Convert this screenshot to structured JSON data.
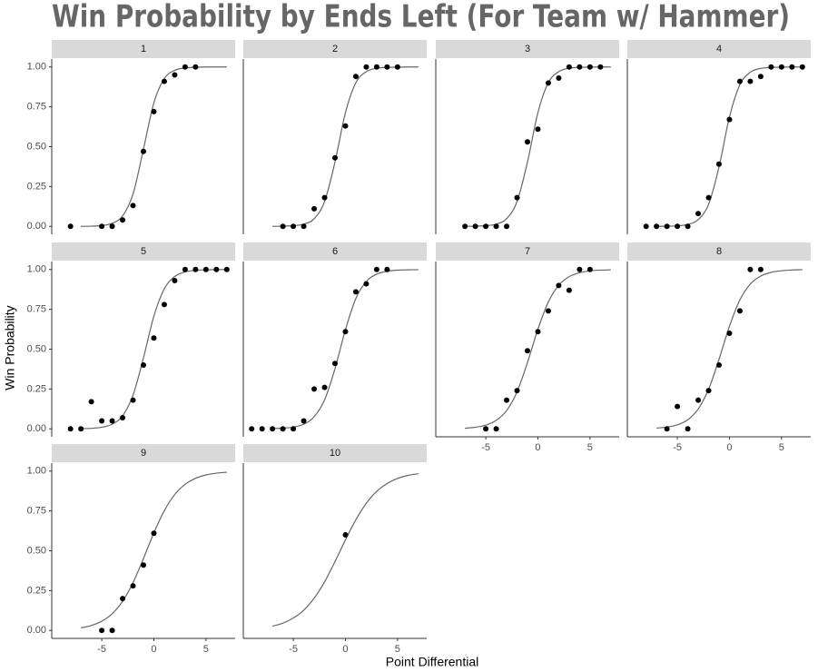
{
  "chart_data": {
    "type": "scatter",
    "title": "Win Probability by Ends Left (For Team w/ Hammer)",
    "x_label": "Point Differential",
    "y_label": "Win Probability",
    "point_color": "#000000",
    "curve_color": "#666666",
    "strip_color": "#d9d9d9",
    "xlim": [
      -9.8,
      7.8
    ],
    "ylim": [
      -0.05,
      1.05
    ],
    "xticks": [
      -5,
      0,
      5
    ],
    "yticks": [
      {
        "value": 0,
        "label": "0.00"
      },
      {
        "value": 0.25,
        "label": "0.25"
      },
      {
        "value": 0.5,
        "label": "0.50"
      },
      {
        "value": 0.75,
        "label": "0.75"
      },
      {
        "value": 1,
        "label": "1.00"
      }
    ],
    "panels": [
      {
        "title": "1",
        "points": {
          "x": [
            -8,
            -5,
            -4,
            -3,
            -2,
            -1,
            0,
            1,
            2,
            3,
            4
          ],
          "y": [
            0,
            0,
            0,
            0.04,
            0.13,
            0.47,
            0.72,
            0.91,
            0.95,
            1,
            1
          ]
        },
        "curve": {
          "x": [
            -7,
            -6,
            -5,
            -4,
            -3,
            -2,
            -1,
            0,
            1,
            2,
            3,
            4,
            5,
            6,
            7
          ],
          "y": [
            0,
            0.001,
            0.005,
            0.019,
            0.065,
            0.203,
            0.484,
            0.775,
            0.927,
            0.979,
            0.994,
            0.998,
            1,
            1,
            1
          ]
        }
      },
      {
        "title": "2",
        "points": {
          "x": [
            -6,
            -5,
            -4,
            -3,
            -2,
            -1,
            0,
            1,
            2,
            3,
            4,
            5
          ],
          "y": [
            0,
            0,
            0,
            0.11,
            0.18,
            0.43,
            0.63,
            0.94,
            1,
            1,
            1,
            1
          ]
        },
        "curve": {
          "x": [
            -7,
            -6,
            -5,
            -4,
            -3,
            -2,
            -1,
            0,
            1,
            2,
            3,
            4,
            5,
            6,
            7
          ],
          "y": [
            0,
            0.001,
            0.004,
            0.014,
            0.048,
            0.156,
            0.404,
            0.713,
            0.901,
            0.971,
            0.992,
            0.998,
            0.999,
            1,
            1
          ]
        }
      },
      {
        "title": "3",
        "points": {
          "x": [
            -7,
            -6,
            -5,
            -4,
            -3,
            -2,
            -1,
            0,
            1,
            2,
            3,
            4,
            5,
            6
          ],
          "y": [
            0,
            0,
            0,
            0,
            0,
            0.18,
            0.53,
            0.61,
            0.9,
            0.93,
            1,
            1,
            1,
            1
          ]
        },
        "curve": {
          "x": [
            -7,
            -6,
            -5,
            -4,
            -3,
            -2,
            -1,
            0,
            1,
            2,
            3,
            4,
            5,
            6,
            7
          ],
          "y": [
            0,
            0.001,
            0.004,
            0.014,
            0.048,
            0.156,
            0.404,
            0.713,
            0.901,
            0.971,
            0.992,
            0.998,
            0.999,
            1,
            1
          ]
        }
      },
      {
        "title": "4",
        "points": {
          "x": [
            -8,
            -7,
            -6,
            -5,
            -4,
            -3,
            -2,
            -1,
            0,
            1,
            2,
            3,
            4,
            5,
            6,
            7
          ],
          "y": [
            0,
            0,
            0,
            0,
            0,
            0.08,
            0.18,
            0.39,
            0.67,
            0.91,
            0.91,
            0.94,
            1,
            1,
            1,
            1
          ]
        },
        "curve": {
          "x": [
            -7,
            -6,
            -5,
            -4,
            -3,
            -2,
            -1,
            0,
            1,
            2,
            3,
            4,
            5,
            6,
            7
          ],
          "y": [
            0,
            0.001,
            0.003,
            0.012,
            0.042,
            0.139,
            0.373,
            0.686,
            0.889,
            0.967,
            0.991,
            0.997,
            0.999,
            1,
            1
          ]
        }
      },
      {
        "title": "5",
        "points": {
          "x": [
            -8,
            -7,
            -6,
            -5,
            -4,
            -3,
            -2,
            -1,
            0,
            1,
            2,
            3,
            4,
            5,
            6,
            7
          ],
          "y": [
            0,
            0,
            0.17,
            0.05,
            0.05,
            0.07,
            0.18,
            0.4,
            0.57,
            0.78,
            0.93,
            1,
            1,
            1,
            1,
            1
          ]
        },
        "curve": {
          "x": [
            -7,
            -6,
            -5,
            -4,
            -3,
            -2,
            -1,
            0,
            1,
            2,
            3,
            4,
            5,
            6,
            7
          ],
          "y": [
            0.001,
            0.003,
            0.01,
            0.029,
            0.082,
            0.211,
            0.445,
            0.707,
            0.879,
            0.956,
            0.985,
            0.995,
            0.998,
            0.999,
            1
          ]
        }
      },
      {
        "title": "6",
        "points": {
          "x": [
            -9,
            -8,
            -7,
            -6,
            -5,
            -4,
            -3,
            -2,
            -1,
            0,
            1,
            2,
            3,
            4
          ],
          "y": [
            0,
            0,
            0,
            0,
            0,
            0.05,
            0.25,
            0.26,
            0.41,
            0.61,
            0.86,
            0.91,
            1,
            1
          ]
        },
        "curve": {
          "x": [
            -7,
            -6,
            -5,
            -4,
            -3,
            -2,
            -1,
            0,
            1,
            2,
            3,
            4,
            5,
            6,
            7
          ],
          "y": [
            0.002,
            0.004,
            0.011,
            0.029,
            0.076,
            0.182,
            0.378,
            0.622,
            0.818,
            0.924,
            0.971,
            0.989,
            0.996,
            0.998,
            0.999
          ]
        }
      },
      {
        "title": "7",
        "points": {
          "x": [
            -5,
            -4,
            -3,
            -2,
            -1,
            0,
            1,
            2,
            3,
            4,
            5
          ],
          "y": [
            0,
            0,
            0.18,
            0.24,
            0.49,
            0.61,
            0.74,
            0.9,
            0.87,
            1,
            1
          ]
        },
        "curve": {
          "x": [
            -7,
            -6,
            -5,
            -4,
            -3,
            -2,
            -1,
            0,
            1,
            2,
            3,
            4,
            5,
            6,
            7
          ],
          "y": [
            0.004,
            0.01,
            0.023,
            0.053,
            0.115,
            0.233,
            0.416,
            0.625,
            0.796,
            0.901,
            0.955,
            0.98,
            0.992,
            0.996,
            0.998
          ]
        }
      },
      {
        "title": "8",
        "points": {
          "x": [
            -6,
            -5,
            -4,
            -3,
            -2,
            -1,
            0,
            1,
            2,
            3
          ],
          "y": [
            0,
            0.14,
            0,
            0.18,
            0.24,
            0.4,
            0.6,
            0.74,
            1,
            1
          ]
        },
        "curve": {
          "x": [
            -7,
            -6,
            -5,
            -4,
            -3,
            -2,
            -1,
            0,
            1,
            2,
            3,
            4,
            5,
            6,
            7
          ],
          "y": [
            0.005,
            0.011,
            0.025,
            0.057,
            0.124,
            0.249,
            0.437,
            0.644,
            0.809,
            0.909,
            0.959,
            0.982,
            0.992,
            0.997,
            0.999
          ]
        }
      },
      {
        "title": "9",
        "points": {
          "x": [
            -5,
            -4,
            -3,
            -2,
            -1,
            0
          ],
          "y": [
            0,
            0,
            0.2,
            0.28,
            0.41,
            0.61
          ]
        },
        "curve": {
          "x": [
            -7,
            -6,
            -5,
            -4,
            -3,
            -2,
            -1,
            0,
            1,
            2,
            3,
            4,
            5,
            6,
            7
          ],
          "y": [
            0.016,
            0.031,
            0.058,
            0.105,
            0.183,
            0.3,
            0.451,
            0.612,
            0.751,
            0.853,
            0.917,
            0.955,
            0.976,
            0.987,
            0.993
          ]
        }
      },
      {
        "title": "10",
        "points": {
          "x": [
            0
          ],
          "y": [
            0.6
          ]
        },
        "curve": {
          "x": [
            -7,
            -6,
            -5,
            -4,
            -3,
            -2,
            -1,
            0,
            1,
            2,
            3,
            4,
            5,
            6,
            7
          ],
          "y": [
            0.027,
            0.046,
            0.078,
            0.127,
            0.202,
            0.305,
            0.432,
            0.568,
            0.695,
            0.798,
            0.873,
            0.922,
            0.954,
            0.973,
            0.984
          ]
        }
      }
    ]
  }
}
